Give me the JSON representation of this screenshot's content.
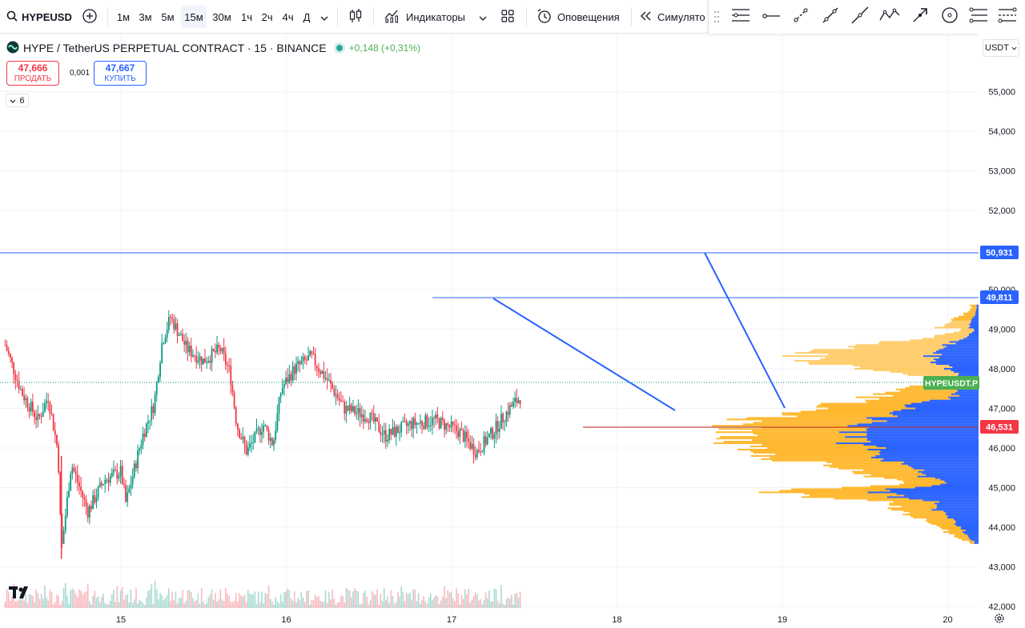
{
  "toolbar": {
    "symbol": "HYPEUSD",
    "intervals": [
      "1м",
      "3м",
      "5м",
      "15м",
      "30м",
      "1ч",
      "2ч",
      "4ч",
      "Д"
    ],
    "active_interval": "15м",
    "indicators_label": "Индикаторы",
    "alerts_label": "Оповещения",
    "replay_label": "Симулято"
  },
  "legend": {
    "title": "HYPE / TetherUS PERPETUAL CONTRACT · 15 · BINANCE",
    "change": "+0,148 (+0,31%)"
  },
  "trade": {
    "sell_price": "47,666",
    "sell_label": "ПРОДАТЬ",
    "spread": "0,001",
    "buy_price": "47,667",
    "buy_label": "КУПИТЬ"
  },
  "indicator_count": "6",
  "currency": "USDT",
  "price_axis": [
    "55,000",
    "54,000",
    "53,000",
    "52,000",
    "51,000",
    "50,000",
    "49,000",
    "48,000",
    "47,000",
    "46,000",
    "45,000",
    "44,000",
    "43,000",
    "42,000"
  ],
  "time_axis": [
    "15",
    "16",
    "17",
    "18",
    "19",
    "20"
  ],
  "price_labels": {
    "h1": "50,931",
    "h2": "49,811",
    "symbol": "HYPEUSDT.P",
    "red": "46,531"
  },
  "colors": {
    "up": "#089981",
    "down": "#f23645",
    "line": "#2962ff",
    "profile_yellow": "#ffb82e",
    "profile_blue": "#2962ff"
  },
  "chart_data": {
    "type": "candlestick",
    "ylim": [
      42,
      55.5
    ],
    "x_range_days": [
      14.3,
      20.2
    ],
    "close_path": [
      [
        14.3,
        48.6
      ],
      [
        14.4,
        47.4
      ],
      [
        14.5,
        46.7
      ],
      [
        14.56,
        47.3
      ],
      [
        14.62,
        45.9
      ],
      [
        14.64,
        43.4
      ],
      [
        14.7,
        45.6
      ],
      [
        14.8,
        44.4
      ],
      [
        14.9,
        45.2
      ],
      [
        15.0,
        45.4
      ],
      [
        15.03,
        44.6
      ],
      [
        15.13,
        46.3
      ],
      [
        15.2,
        47.1
      ],
      [
        15.25,
        48.7
      ],
      [
        15.3,
        49.3
      ],
      [
        15.4,
        48.5
      ],
      [
        15.5,
        48.2
      ],
      [
        15.6,
        48.5
      ],
      [
        15.66,
        47.9
      ],
      [
        15.7,
        46.6
      ],
      [
        15.76,
        45.9
      ],
      [
        15.86,
        46.6
      ],
      [
        15.92,
        46.1
      ],
      [
        15.97,
        47.5
      ],
      [
        16.05,
        48.0
      ],
      [
        16.15,
        48.3
      ],
      [
        16.25,
        47.7
      ],
      [
        16.35,
        47.0
      ],
      [
        16.5,
        46.8
      ],
      [
        16.6,
        46.3
      ],
      [
        16.75,
        46.6
      ],
      [
        16.9,
        46.7
      ],
      [
        17.05,
        46.4
      ],
      [
        17.15,
        45.9
      ],
      [
        17.25,
        46.4
      ],
      [
        17.35,
        47.0
      ],
      [
        17.42,
        47.3
      ]
    ],
    "volume_profile_price_range": [
      43.6,
      49.6
    ],
    "profile_peak_price": 46.8
  }
}
